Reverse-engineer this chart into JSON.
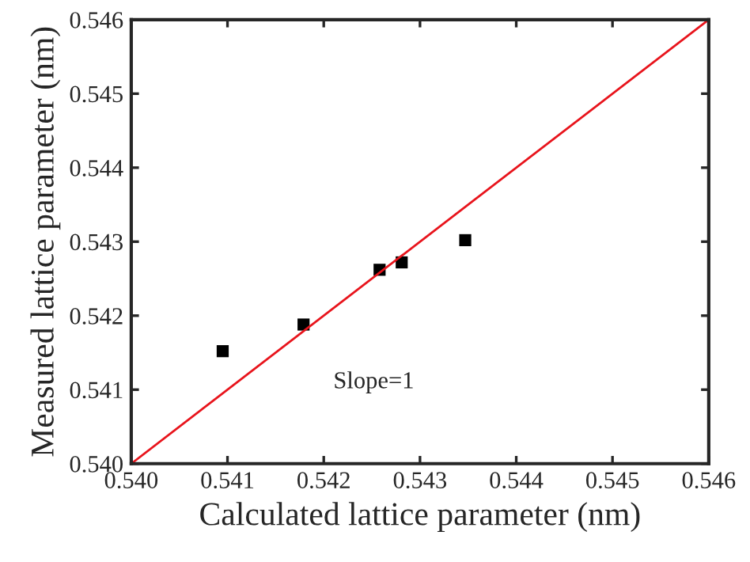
{
  "chart_data": {
    "type": "scatter",
    "xlabel": "Calculated lattice parameter (nm)",
    "ylabel": "Measured lattice parameter (nm)",
    "series": [
      {
        "color": "#000000",
        "marker": "square",
        "x": [
          0.54095,
          0.54179,
          0.54258,
          0.54281,
          0.54347
        ],
        "values": [
          0.54152,
          0.54188,
          0.54262,
          0.54272,
          0.54302
        ]
      },
      {
        "type": "line",
        "color": "#e8141c",
        "marker": "none",
        "x": [
          0.54,
          0.546
        ],
        "values": [
          0.54,
          0.546
        ]
      }
    ],
    "annotations": [
      "Slope=1"
    ],
    "xlim": [
      0.54,
      0.546
    ],
    "ylim": [
      0.54,
      0.546
    ],
    "xticks": [
      {
        "value": 0.54,
        "label": "0.540"
      },
      0.541,
      0.542,
      0.543,
      0.544,
      0.545,
      {
        "value": 0.546,
        "label": "0.546"
      }
    ],
    "yticks": [
      {
        "value": 0.54,
        "label": "0.540"
      },
      0.541,
      0.542,
      0.543,
      0.544,
      0.545,
      {
        "value": 0.546,
        "label": "0.546"
      }
    ],
    "grid": false,
    "legend": false
  }
}
